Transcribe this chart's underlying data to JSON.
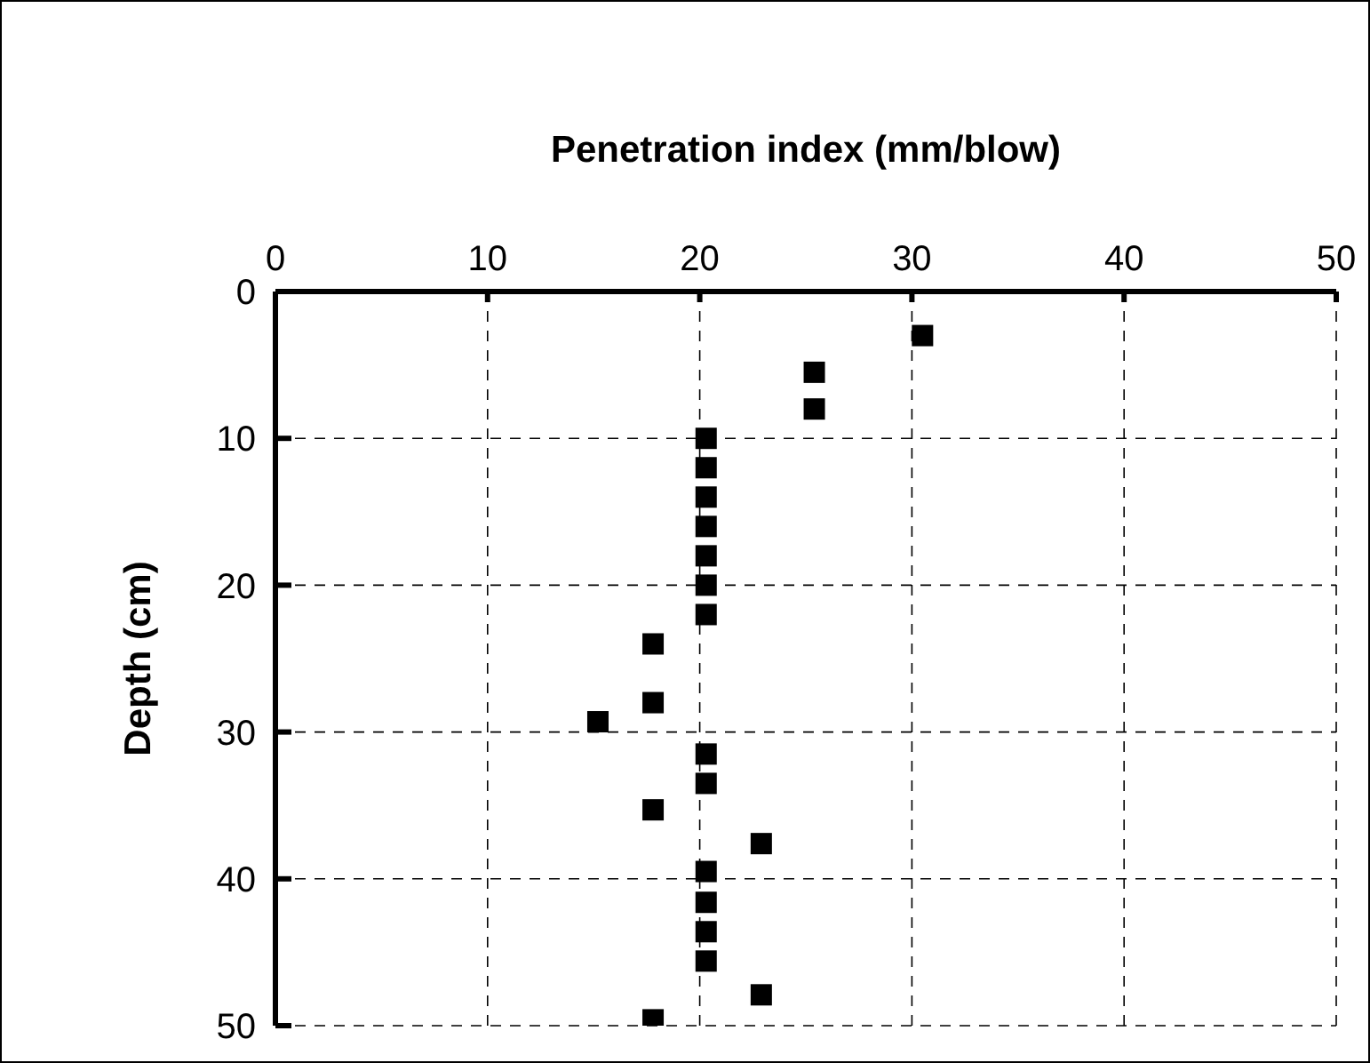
{
  "chart_data": {
    "type": "scatter",
    "xlabel": "Penetration index (mm/blow)",
    "ylabel": "Depth (cm)",
    "xlim": [
      0,
      50
    ],
    "xticks": [
      0,
      10,
      20,
      30,
      40,
      50
    ],
    "ylim": [
      50,
      0
    ],
    "yticks": [
      0,
      10,
      20,
      30,
      40,
      50
    ],
    "grid": true,
    "marker": "square",
    "series": [
      {
        "color": "#000000",
        "x": [
          30.5,
          25.4,
          25.4,
          20.3,
          20.3,
          20.3,
          20.3,
          20.3,
          20.3,
          20.3,
          17.8,
          17.8,
          15.2,
          20.3,
          20.3,
          17.8,
          22.9,
          20.3,
          20.3,
          20.3,
          20.3,
          22.9,
          17.8
        ],
        "values": [
          3,
          5.5,
          8,
          10,
          12,
          14,
          16,
          18,
          20,
          22,
          24,
          28,
          29.3,
          31.5,
          33.5,
          35.3,
          37.6,
          39.5,
          41.6,
          43.6,
          45.6,
          47.9,
          49.6
        ]
      }
    ]
  }
}
